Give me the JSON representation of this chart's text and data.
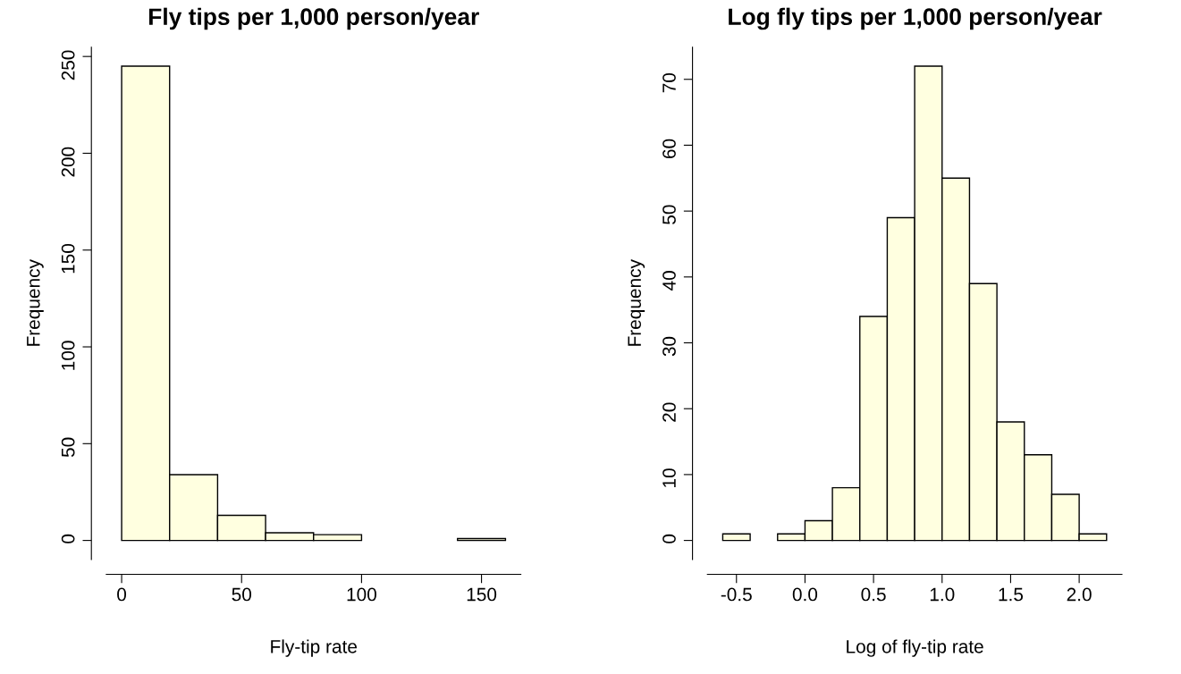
{
  "chart_data": [
    {
      "type": "histogram",
      "title": "Fly tips per 1,000 person/year",
      "xlabel": "Fly-tip rate",
      "ylabel": "Frequency",
      "bins": [
        0,
        20,
        40,
        60,
        80,
        100,
        120,
        140,
        160
      ],
      "values": [
        245,
        34,
        13,
        4,
        3,
        0,
        0,
        1
      ],
      "color": "#ffffe0",
      "xlim": [
        -6.4,
        166.4
      ],
      "xticks": [
        0,
        50,
        100,
        150
      ],
      "ylim": [
        -9.8,
        254.8
      ],
      "yticks": [
        0,
        50,
        100,
        150,
        200,
        250
      ],
      "grid": false,
      "legend": false
    },
    {
      "type": "histogram",
      "title": "Log fly tips per 1,000 person/year",
      "xlabel": "Log of fly-tip rate",
      "ylabel": "Frequency",
      "bins": [
        -0.6,
        -0.4,
        -0.2,
        0.0,
        0.2,
        0.4,
        0.6,
        0.8,
        1.0,
        1.2,
        1.4,
        1.6,
        1.8,
        2.0,
        2.2
      ],
      "values": [
        1,
        0,
        1,
        3,
        8,
        34,
        49,
        72,
        55,
        39,
        18,
        13,
        7,
        1
      ],
      "color": "#ffffe0",
      "xlim": [
        -0.712,
        2.312
      ],
      "xticks": [
        {
          "value": -0.5,
          "label": "-0.5"
        },
        {
          "value": 0,
          "label": "0.0"
        },
        {
          "value": 0.5,
          "label": "0.5"
        },
        {
          "value": 1,
          "label": "1.0"
        },
        {
          "value": 1.5,
          "label": "1.5"
        },
        {
          "value": 2,
          "label": "2.0"
        }
      ],
      "ylim": [
        -2.88,
        74.88
      ],
      "yticks": [
        0,
        10,
        20,
        30,
        40,
        50,
        60,
        70
      ],
      "grid": false,
      "legend": false
    }
  ]
}
